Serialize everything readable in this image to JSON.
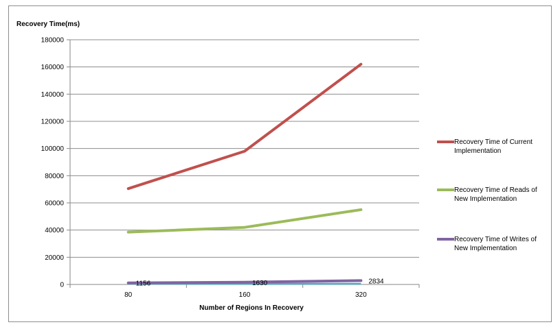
{
  "chart_data": {
    "type": "line",
    "ylabel": "Recovery Time(ms)",
    "xlabel": "Number of Regions In Recovery",
    "categories": [
      "80",
      "160",
      "320"
    ],
    "ylim": [
      0,
      180000
    ],
    "yticks": [
      0,
      20000,
      40000,
      60000,
      80000,
      100000,
      120000,
      140000,
      160000,
      180000
    ],
    "grid": true,
    "legend_position": "right",
    "series": [
      {
        "name": "Recovery Time of Current Implementation",
        "legend_lines": [
          "Recovery Time of Current",
          "Implementation"
        ],
        "color": "#c0504d",
        "values": [
          70500,
          98000,
          162000
        ]
      },
      {
        "name": "Recovery Time of Reads of New Implementation",
        "legend_lines": [
          "Recovery Time of Reads of",
          "New Implementation"
        ],
        "color": "#9bbb59",
        "values": [
          38500,
          42000,
          55000
        ]
      },
      {
        "name": "Recovery Time of Writes of New Implementation",
        "legend_lines": [
          "Recovery Time of Writes of",
          "New Implementation"
        ],
        "color": "#8064a2",
        "values": [
          1156,
          1630,
          2834
        ],
        "data_labels": [
          "1156",
          "1630",
          "2834"
        ]
      }
    ],
    "extra_line": {
      "color": "#4bacc6",
      "values": [
        0,
        0,
        0
      ]
    }
  }
}
